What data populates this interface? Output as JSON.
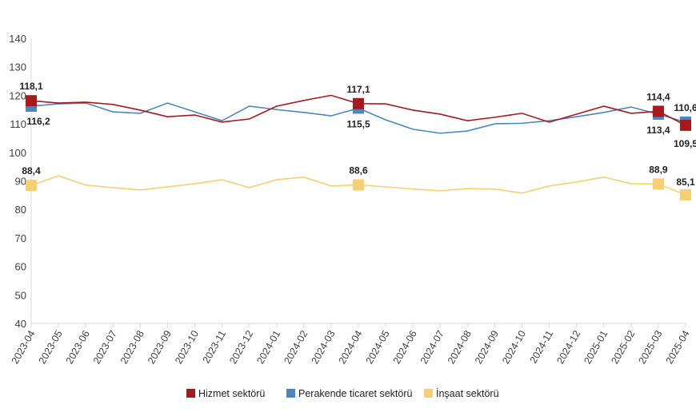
{
  "chart_data": {
    "type": "line",
    "title": "",
    "xlabel": "",
    "ylabel": "",
    "ylim": [
      40,
      140
    ],
    "yticks": [
      40,
      50,
      60,
      70,
      80,
      90,
      100,
      110,
      120,
      130,
      140
    ],
    "grid": false,
    "legend_placement": "bottom",
    "categories": [
      "2023-04",
      "2023-05",
      "2023-06",
      "2023-07",
      "2023-08",
      "2023-09",
      "2023-10",
      "2023-11",
      "2023-12",
      "2024-01",
      "2024-02",
      "2024-03",
      "2024-04",
      "2024-05",
      "2024-06",
      "2024-07",
      "2024-08",
      "2024-09",
      "2024-10",
      "2024-11",
      "2024-12",
      "2025-01",
      "2025-02",
      "2025-03",
      "2025-04"
    ],
    "series": [
      {
        "name": "Hizmet sektörü",
        "color": "#a8181f",
        "values": [
          118.1,
          117.3,
          117.6,
          116.8,
          114.8,
          112.5,
          113.1,
          110.6,
          111.7,
          116.2,
          118.2,
          120.0,
          117.1,
          117.0,
          114.8,
          113.4,
          111.1,
          112.3,
          113.7,
          110.6,
          113.4,
          116.2,
          113.7,
          114.4,
          109.5
        ]
      },
      {
        "name": "Perakende ticaret sektörü",
        "color": "#4a86bf",
        "values": [
          116.2,
          117.0,
          117.3,
          114.2,
          113.7,
          117.3,
          114.2,
          111.1,
          116.2,
          115.0,
          114.0,
          112.8,
          115.5,
          111.4,
          108.1,
          106.7,
          107.5,
          110.0,
          110.2,
          111.1,
          112.5,
          114.0,
          115.9,
          113.4,
          110.6
        ]
      },
      {
        "name": "İnşaat sektörü",
        "color": "#f5cf72",
        "values": [
          88.4,
          91.8,
          88.5,
          87.6,
          86.8,
          87.9,
          89.0,
          90.4,
          87.6,
          90.4,
          91.3,
          88.2,
          88.6,
          87.9,
          87.1,
          86.5,
          87.3,
          87.1,
          85.7,
          88.2,
          89.6,
          91.3,
          89.0,
          88.9,
          85.1
        ]
      }
    ],
    "markers_at": [
      "2023-04",
      "2024-04",
      "2025-03",
      "2025-04"
    ],
    "data_labels": [
      {
        "series": 0,
        "x": "2023-04",
        "text": "118,1"
      },
      {
        "series": 1,
        "x": "2023-04",
        "text": "116,2"
      },
      {
        "series": 2,
        "x": "2023-04",
        "text": "88,4"
      },
      {
        "series": 0,
        "x": "2024-04",
        "text": "117,1"
      },
      {
        "series": 1,
        "x": "2024-04",
        "text": "115,5"
      },
      {
        "series": 2,
        "x": "2024-04",
        "text": "88,6"
      },
      {
        "series": 0,
        "x": "2025-03",
        "text": "114,4"
      },
      {
        "series": 1,
        "x": "2025-03",
        "text": "113,4"
      },
      {
        "series": 2,
        "x": "2025-03",
        "text": "88,9"
      },
      {
        "series": 1,
        "x": "2025-04",
        "text": "110,6"
      },
      {
        "series": 0,
        "x": "2025-04",
        "text": "109,5"
      },
      {
        "series": 2,
        "x": "2025-04",
        "text": "85,1"
      }
    ]
  }
}
